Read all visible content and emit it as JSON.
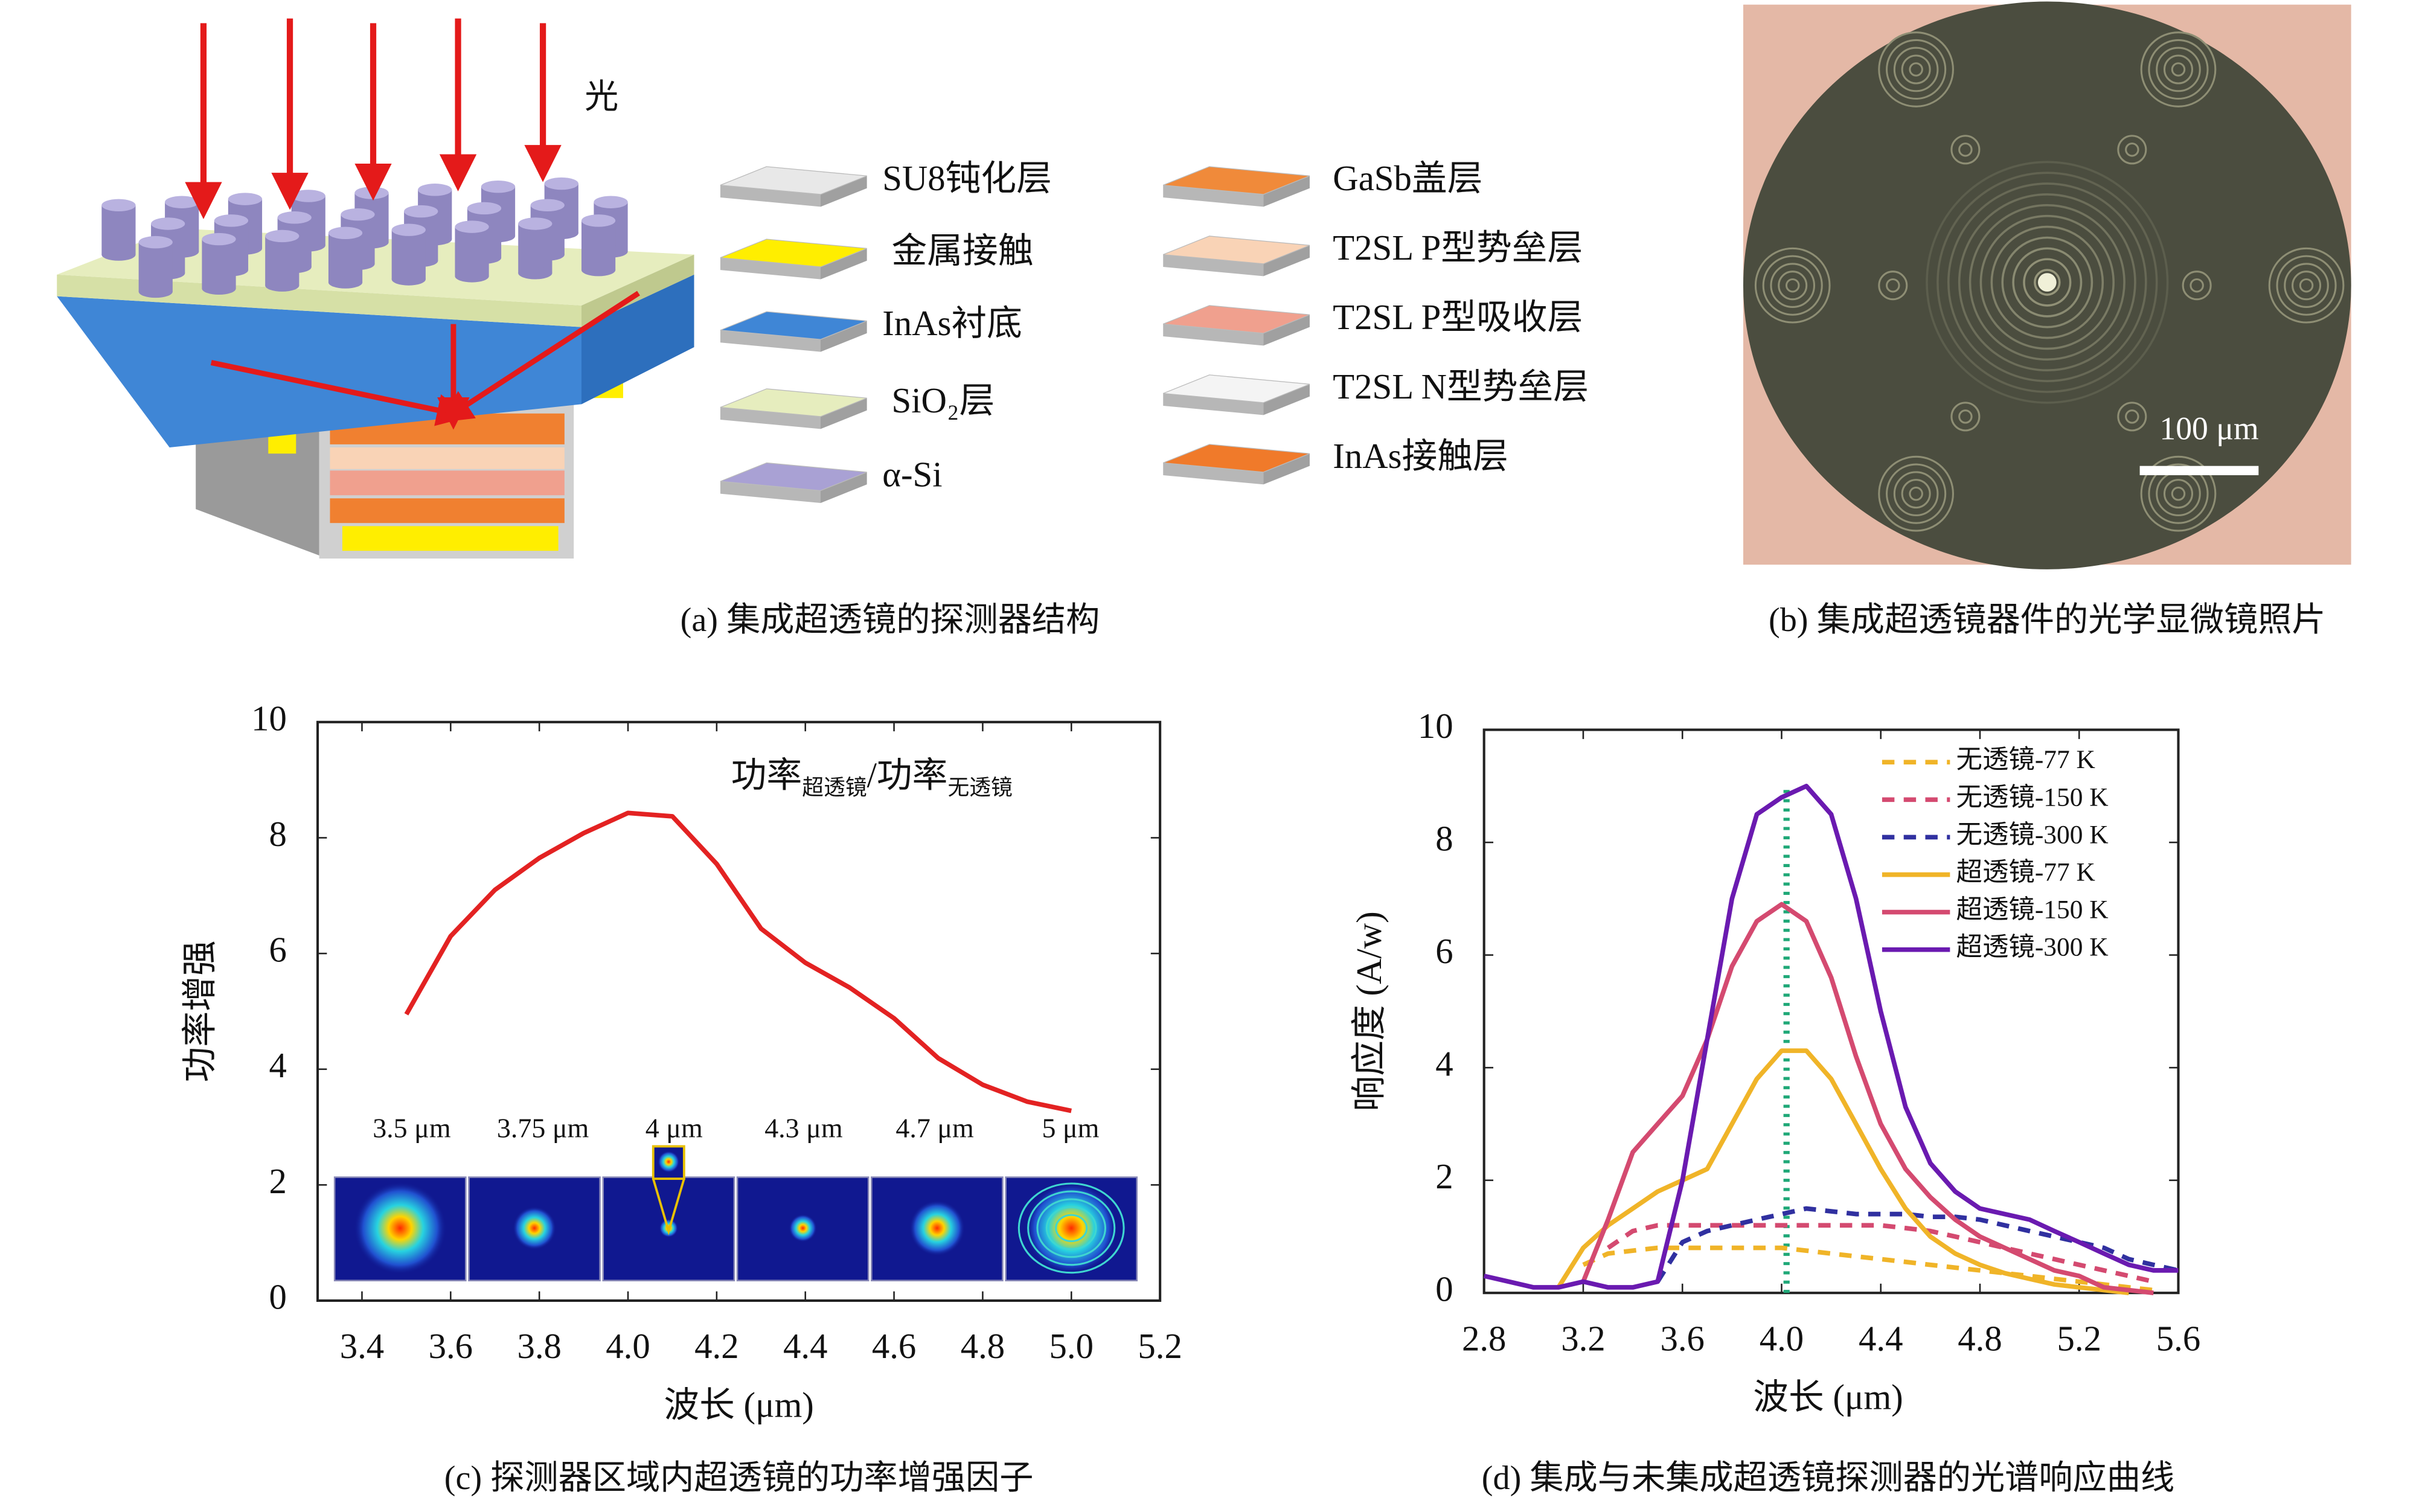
{
  "panel_a": {
    "light_label": "光",
    "legend": [
      "SU8钝化层",
      "金属接触",
      "InAs衬底",
      "SiO₂层",
      "α-Si",
      "GaSb盖层",
      "T2SL P型势垒层",
      "T2SL P型吸收层",
      "T2SL N型势垒层",
      "InAs接触层"
    ],
    "caption": "(a) 集成超透镜的探测器结构"
  },
  "panel_b": {
    "scale_bar": "100 μm",
    "caption": "(b) 集成超透镜器件的光学显微镜照片"
  },
  "chart_data": [
    {
      "type": "line",
      "caption": "(c) 探测器区域内超透镜的功率增强因子",
      "annotation": [
        "功率",
        "超透镜",
        "/功率",
        "无透镜"
      ],
      "inset_labels": [
        "3.5 μm",
        "3.75 μm",
        "4 μm",
        "4.3 μm",
        "4.7 μm",
        "5 μm"
      ],
      "xlabel": "波长 (μm)",
      "ylabel": "功率增强",
      "x": [
        3.5,
        3.6,
        3.7,
        3.8,
        3.9,
        4.0,
        4.1,
        4.2,
        4.3,
        4.4,
        4.5,
        4.6,
        4.7,
        4.8,
        4.9,
        5.0
      ],
      "series": [
        {
          "color": "#e32222",
          "style": "solid",
          "values": [
            4.95,
            6.3,
            7.1,
            7.65,
            8.08,
            8.43,
            8.37,
            7.55,
            6.43,
            5.84,
            5.41,
            4.88,
            4.19,
            3.73,
            3.44,
            3.28
          ]
        }
      ],
      "xlim": [
        3.3,
        5.2
      ],
      "ylim": [
        0,
        10
      ],
      "xticks": [
        3.4,
        3.6,
        3.8,
        {
          "value": 4,
          "label": "4.0"
        },
        4.2,
        4.4,
        4.6,
        4.8,
        {
          "value": 5,
          "label": "5.0"
        },
        5.2
      ],
      "yticks": [
        0,
        2,
        4,
        6,
        8,
        10
      ]
    },
    {
      "type": "line",
      "caption": "(d) 集成与未集成超透镜探测器的光谱响应曲线",
      "xlabel": "波长 (μm)",
      "ylabel": "响应度 (A/w)",
      "legend": "upper right",
      "reference_x": 4.02,
      "reference_color": "#1fa877",
      "x": [
        2.8,
        2.9,
        3.0,
        3.1,
        3.2,
        3.3,
        3.4,
        3.5,
        3.6,
        3.7,
        3.8,
        3.9,
        4.0,
        4.1,
        4.2,
        4.3,
        4.4,
        4.5,
        4.6,
        4.7,
        4.8,
        4.9,
        5.0,
        5.1,
        5.2,
        5.3,
        5.4,
        5.5,
        5.6
      ],
      "series": [
        {
          "name": "无透镜-77 K",
          "color": "#f0b428",
          "style": "dashed",
          "values": [
            null,
            null,
            null,
            null,
            0.5,
            0.7,
            0.75,
            0.8,
            0.8,
            0.8,
            0.8,
            0.8,
            0.8,
            0.75,
            0.7,
            0.65,
            0.6,
            0.55,
            0.5,
            0.45,
            0.4,
            0.35,
            0.3,
            0.25,
            0.2,
            0.15,
            0.1,
            0.05,
            null
          ]
        },
        {
          "name": "无透镜-150 K",
          "color": "#d44a70",
          "style": "dashed",
          "values": [
            null,
            null,
            null,
            null,
            null,
            0.8,
            1.1,
            1.2,
            1.2,
            1.2,
            1.2,
            1.2,
            1.2,
            1.2,
            1.2,
            1.2,
            1.2,
            1.15,
            1.1,
            1.0,
            0.9,
            0.8,
            0.7,
            0.6,
            0.5,
            0.4,
            0.3,
            0.2,
            null
          ]
        },
        {
          "name": "无透镜-300 K",
          "color": "#3030a0",
          "style": "dashed",
          "values": [
            null,
            null,
            null,
            null,
            null,
            null,
            null,
            0.2,
            0.9,
            1.1,
            1.2,
            1.3,
            1.4,
            1.5,
            1.45,
            1.4,
            1.4,
            1.4,
            1.35,
            1.35,
            1.3,
            1.2,
            1.1,
            1.0,
            0.9,
            0.8,
            0.6,
            0.5,
            0.4
          ]
        },
        {
          "name": "超透镜-77 K",
          "color": "#f0b428",
          "style": "solid",
          "values": [
            null,
            null,
            null,
            0.1,
            0.8,
            1.2,
            1.5,
            1.8,
            2.0,
            2.2,
            3.0,
            3.8,
            4.3,
            4.3,
            3.8,
            3.0,
            2.2,
            1.5,
            1.0,
            0.7,
            0.5,
            0.35,
            0.25,
            0.15,
            0.1,
            0.05,
            0,
            null,
            null
          ]
        },
        {
          "name": "超透镜-150 K",
          "color": "#d44a70",
          "style": "solid",
          "values": [
            null,
            null,
            null,
            null,
            0.2,
            1.3,
            2.5,
            3.0,
            3.5,
            4.5,
            5.8,
            6.6,
            6.9,
            6.6,
            5.6,
            4.2,
            3.0,
            2.2,
            1.7,
            1.3,
            1.0,
            0.8,
            0.6,
            0.4,
            0.3,
            0.1,
            0.05,
            0,
            null
          ]
        },
        {
          "name": "超透镜-300 K",
          "color": "#6a1ab0",
          "style": "solid",
          "values": [
            0.3,
            0.2,
            0.1,
            0.1,
            0.2,
            0.1,
            0.1,
            0.2,
            2.0,
            4.5,
            7.0,
            8.5,
            8.8,
            9.0,
            8.5,
            7.0,
            5.0,
            3.3,
            2.3,
            1.8,
            1.5,
            1.4,
            1.3,
            1.1,
            0.9,
            0.7,
            0.5,
            0.4,
            0.4
          ]
        }
      ],
      "xlim": [
        2.8,
        5.6
      ],
      "ylim": [
        0,
        10
      ],
      "xticks": [
        2.8,
        3.2,
        3.6,
        {
          "value": 4,
          "label": "4.0"
        },
        4.4,
        4.8,
        5.2,
        5.6
      ],
      "yticks": [
        0,
        2,
        4,
        6,
        8,
        10
      ]
    }
  ]
}
